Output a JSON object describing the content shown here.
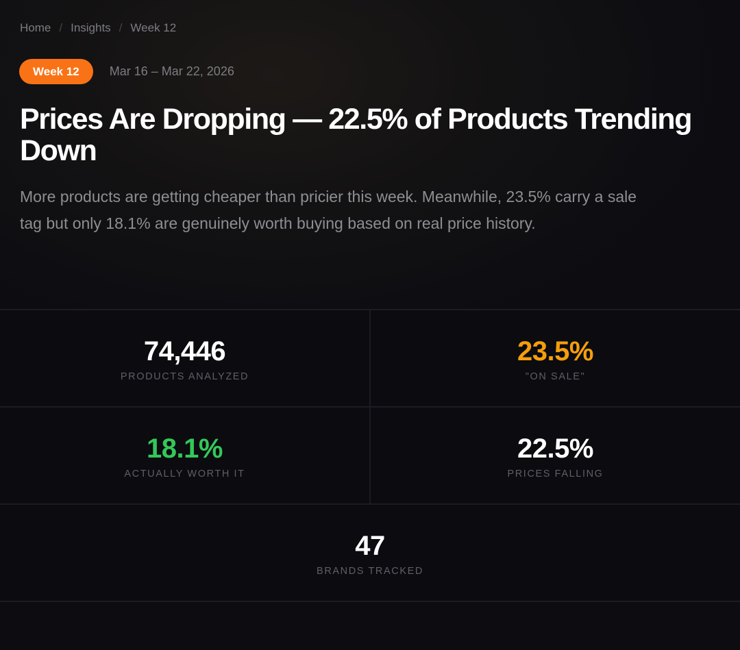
{
  "breadcrumb": {
    "items": [
      "Home",
      "Insights",
      "Week 12"
    ],
    "separator": "/"
  },
  "header": {
    "week_badge": "Week 12",
    "date_range": "Mar 16 – Mar 22, 2026",
    "headline": "Prices Are Dropping — 22.5% of Products Trending Down",
    "summary": "More products are getting cheaper than pricier this week. Meanwhile, 23.5% carry a sale tag but only 18.1% are genuinely worth buying based on real price history."
  },
  "stats": [
    {
      "value": "74,446",
      "label": "PRODUCTS ANALYZED",
      "color": "#ffffff"
    },
    {
      "value": "23.5%",
      "label": "\"ON SALE\"",
      "color": "#f59e0b"
    },
    {
      "value": "18.1%",
      "label": "ACTUALLY WORTH IT",
      "color": "#34c759"
    },
    {
      "value": "22.5%",
      "label": "PRICES FALLING",
      "color": "#ffffff"
    },
    {
      "value": "47",
      "label": "BRANDS TRACKED",
      "color": "#ffffff"
    }
  ],
  "colors": {
    "accent": "#f97316",
    "background": "#0b0b10"
  }
}
